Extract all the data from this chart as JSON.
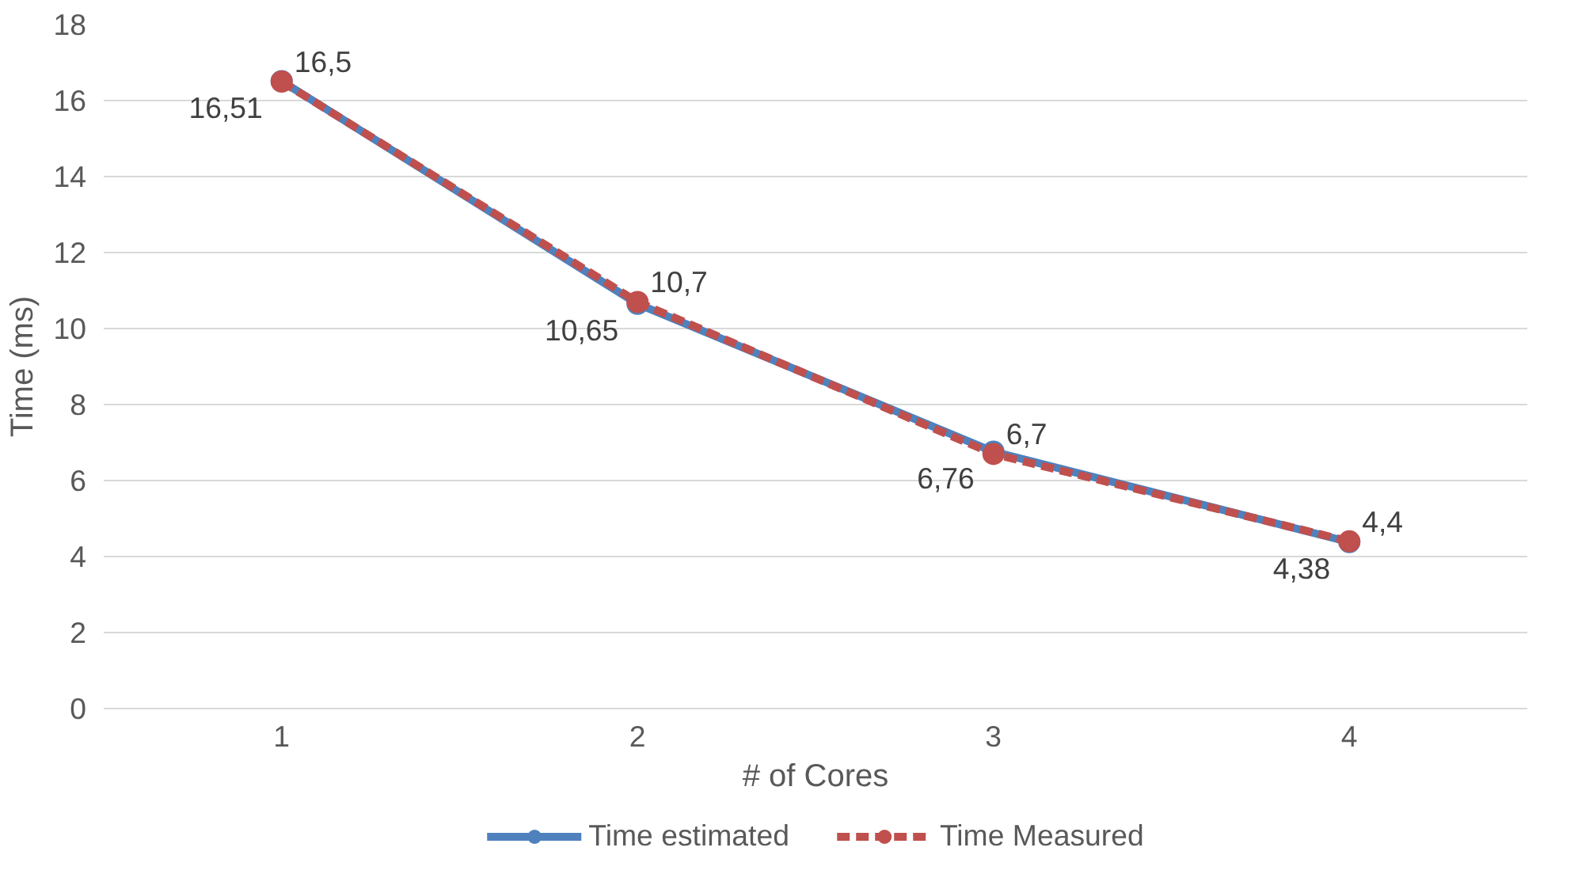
{
  "chart_data": {
    "type": "line",
    "categories": [
      "1",
      "2",
      "3",
      "4"
    ],
    "xlabel": "# of Cores",
    "ylabel": "Time (ms)",
    "ylim": [
      0,
      18
    ],
    "yticks": [
      0,
      2,
      4,
      6,
      8,
      10,
      12,
      14,
      16,
      18
    ],
    "grid": "y",
    "legend": "bottom",
    "marker": "circle",
    "series": [
      {
        "name": "Time estimated",
        "color": "#4f81bd",
        "line_style": "solid",
        "values": [
          16.51,
          10.65,
          6.76,
          4.38
        ],
        "value_labels": [
          "16,51",
          "10,65",
          "6,76",
          "4,38"
        ]
      },
      {
        "name": "Time Measured",
        "color": "#c0504d",
        "line_style": "dashed",
        "values": [
          16.5,
          10.7,
          6.7,
          4.4
        ],
        "value_labels": [
          "16,5",
          "10,7",
          "6,7",
          "4,4"
        ]
      }
    ]
  }
}
